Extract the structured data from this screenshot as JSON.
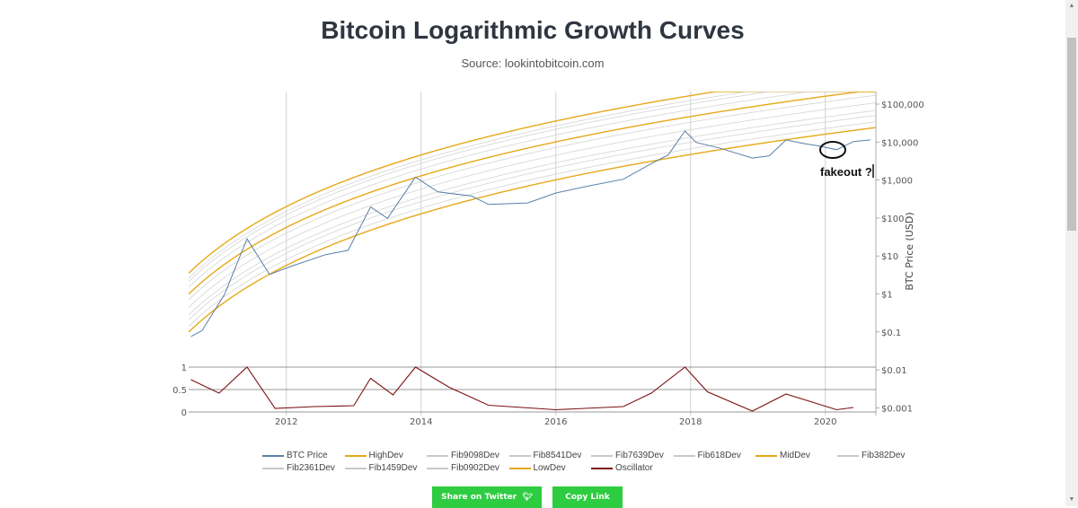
{
  "title": "Bitcoin Logarithmic Growth Curves",
  "subtitle": "Source: lookintobitcoin.com",
  "annotation": "fakeout ?",
  "buttons": {
    "share_twitter": "Share on Twitter",
    "copy_link": "Copy Link"
  },
  "colors": {
    "btc": "#5a7fa6",
    "band": "#e6a817",
    "fib": "#d4d4d4",
    "oscillator": "#7b1010",
    "button": "#2ecc40"
  },
  "chart_data": {
    "type": "line",
    "title": "Bitcoin Logarithmic Growth Curves",
    "x_ticks": [
      "2012",
      "2014",
      "2016",
      "2018",
      "2020"
    ],
    "y_axis": {
      "label": "BTC Price (USD)",
      "scale": "log",
      "ticks": [
        "$100,000",
        "$10,000",
        "$1,000",
        "$100",
        "$10",
        "$1",
        "$0.1",
        "$0.01",
        "$0.001"
      ]
    },
    "oscillator_axis": {
      "ticks": [
        "1",
        "0.5",
        "0"
      ],
      "range": [
        0,
        1
      ]
    },
    "legend": [
      "BTC Price",
      "HighDev",
      "Fib9098Dev",
      "Fib8541Dev",
      "Fib7639Dev",
      "Fib618Dev",
      "MidDev",
      "Fib382Dev",
      "Fib2361Dev",
      "Fib1459Dev",
      "Fib0902Dev",
      "LowDev",
      "Oscillator"
    ],
    "btc_price": {
      "x": [
        "2010-08",
        "2010-10",
        "2011-02",
        "2011-06",
        "2011-10",
        "2012-02",
        "2012-08",
        "2012-12",
        "2013-04",
        "2013-07",
        "2013-12",
        "2014-04",
        "2014-10",
        "2015-01",
        "2015-08",
        "2016-01",
        "2016-07",
        "2017-01",
        "2017-06",
        "2017-09",
        "2017-12",
        "2018-02",
        "2018-06",
        "2018-12",
        "2019-03",
        "2019-06",
        "2019-09",
        "2019-12",
        "2020-03",
        "2020-06",
        "2020-09"
      ],
      "y": [
        0.07,
        0.1,
        0.9,
        26,
        3,
        5,
        10,
        13,
        180,
        90,
        1100,
        450,
        350,
        210,
        230,
        420,
        650,
        970,
        2500,
        4200,
        18000,
        9000,
        6500,
        3500,
        4000,
        10500,
        8500,
        7200,
        5800,
        9500,
        10500
      ]
    },
    "oscillator": {
      "x": [
        "2010-08",
        "2011-01",
        "2011-06",
        "2011-11",
        "2012-06",
        "2013-01",
        "2013-04",
        "2013-08",
        "2013-12",
        "2014-06",
        "2015-01",
        "2016-01",
        "2017-01",
        "2017-06",
        "2017-12",
        "2018-04",
        "2018-12",
        "2019-06",
        "2020-03",
        "2020-06"
      ],
      "y": [
        0.72,
        0.42,
        1.0,
        0.08,
        0.12,
        0.14,
        0.75,
        0.38,
        1.0,
        0.55,
        0.15,
        0.05,
        0.12,
        0.42,
        1.0,
        0.45,
        0.02,
        0.4,
        0.05,
        0.1
      ]
    }
  }
}
